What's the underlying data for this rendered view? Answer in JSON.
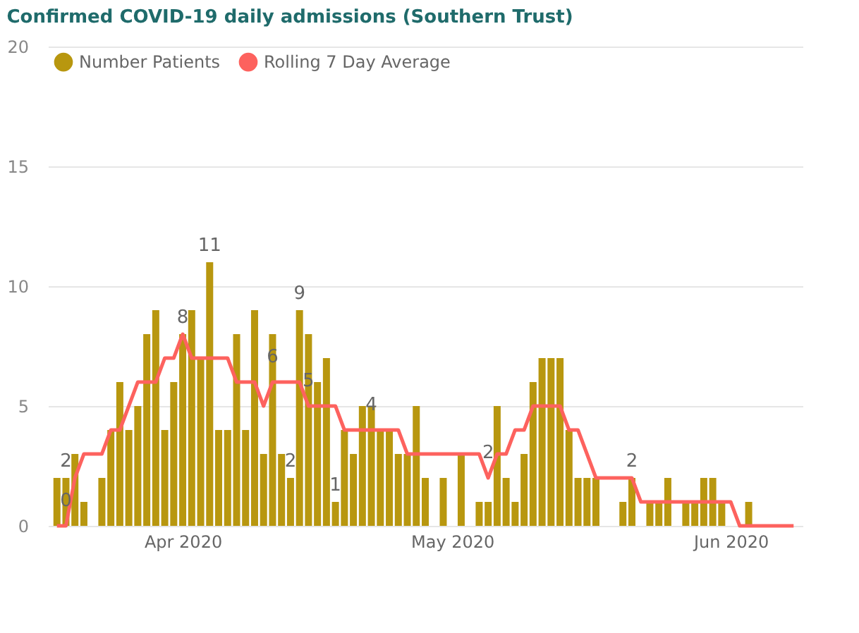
{
  "chart_data": {
    "type": "bar",
    "title": "Confirmed COVID-19 daily admissions (Southern Trust)",
    "x": [
      "2020-03-18",
      "2020-03-19",
      "2020-03-20",
      "2020-03-21",
      "2020-03-22",
      "2020-03-23",
      "2020-03-24",
      "2020-03-25",
      "2020-03-26",
      "2020-03-27",
      "2020-03-28",
      "2020-03-29",
      "2020-03-30",
      "2020-03-31",
      "2020-04-01",
      "2020-04-02",
      "2020-04-03",
      "2020-04-04",
      "2020-04-05",
      "2020-04-06",
      "2020-04-07",
      "2020-04-08",
      "2020-04-09",
      "2020-04-10",
      "2020-04-11",
      "2020-04-12",
      "2020-04-13",
      "2020-04-14",
      "2020-04-15",
      "2020-04-16",
      "2020-04-17",
      "2020-04-18",
      "2020-04-19",
      "2020-04-20",
      "2020-04-21",
      "2020-04-22",
      "2020-04-23",
      "2020-04-24",
      "2020-04-25",
      "2020-04-26",
      "2020-04-27",
      "2020-04-28",
      "2020-04-29",
      "2020-04-30",
      "2020-05-01",
      "2020-05-02",
      "2020-05-03",
      "2020-05-04",
      "2020-05-05",
      "2020-05-06",
      "2020-05-07",
      "2020-05-08",
      "2020-05-09",
      "2020-05-10",
      "2020-05-11",
      "2020-05-12",
      "2020-05-13",
      "2020-05-14",
      "2020-05-15",
      "2020-05-16",
      "2020-05-17",
      "2020-05-18",
      "2020-05-19",
      "2020-05-20",
      "2020-05-21",
      "2020-05-22",
      "2020-05-23",
      "2020-05-24",
      "2020-05-25",
      "2020-05-26",
      "2020-05-27",
      "2020-05-28",
      "2020-05-29",
      "2020-05-30",
      "2020-05-31",
      "2020-06-01",
      "2020-06-02",
      "2020-06-03",
      "2020-06-04",
      "2020-06-05",
      "2020-06-06",
      "2020-06-07",
      "2020-06-08"
    ],
    "series": [
      {
        "name": "Number Patients",
        "color": "#b8970f",
        "values": [
          2,
          2,
          3,
          1,
          null,
          2,
          4,
          6,
          4,
          5,
          8,
          9,
          4,
          6,
          8,
          9,
          7,
          11,
          4,
          4,
          8,
          4,
          9,
          3,
          8,
          3,
          2,
          9,
          8,
          6,
          7,
          1,
          4,
          3,
          5,
          5,
          4,
          4,
          3,
          3,
          5,
          2,
          null,
          2,
          null,
          3,
          null,
          1,
          1,
          5,
          2,
          1,
          3,
          6,
          7,
          7,
          7,
          4,
          2,
          2,
          2,
          null,
          null,
          1,
          2,
          null,
          1,
          1,
          2,
          null,
          1,
          1,
          2,
          2,
          1,
          null,
          null,
          1,
          null,
          null,
          null,
          null,
          null
        ],
        "value_labels": [
          null,
          "2",
          null,
          null,
          null,
          null,
          null,
          null,
          null,
          null,
          null,
          null,
          null,
          null,
          "8",
          null,
          null,
          "11",
          null,
          null,
          null,
          null,
          null,
          null,
          null,
          null,
          "2",
          "9",
          null,
          null,
          null,
          "1",
          null,
          null,
          null,
          null,
          null,
          null,
          null,
          null,
          null,
          null,
          null,
          null,
          null,
          null,
          null,
          null,
          null,
          null,
          null,
          null,
          null,
          null,
          null,
          null,
          null,
          null,
          null,
          null,
          null,
          null,
          null,
          null,
          "2",
          null,
          null,
          null,
          null,
          null,
          null,
          null,
          null,
          null,
          null,
          null,
          null,
          null,
          null,
          null,
          null,
          null,
          null
        ]
      },
      {
        "name": "Rolling 7 Day Average",
        "type": "line",
        "color": "#fd625e",
        "values": [
          0,
          0,
          2,
          3,
          3,
          3,
          4,
          4,
          5,
          6,
          6,
          6,
          7,
          7,
          8,
          7,
          7,
          7,
          7,
          7,
          6,
          6,
          6,
          5,
          6,
          6,
          6,
          6,
          5,
          5,
          5,
          5,
          4,
          4,
          4,
          4,
          4,
          4,
          4,
          3,
          3,
          3,
          3,
          3,
          3,
          3,
          3,
          3,
          2,
          3,
          3,
          4,
          4,
          5,
          5,
          5,
          5,
          4,
          4,
          3,
          2,
          2,
          2,
          2,
          2,
          1,
          1,
          1,
          1,
          1,
          1,
          1,
          1,
          1,
          1,
          1,
          0,
          0,
          0,
          0,
          0,
          0,
          0
        ],
        "value_labels": [
          null,
          "0",
          null,
          null,
          null,
          null,
          null,
          null,
          null,
          null,
          null,
          null,
          null,
          null,
          null,
          null,
          null,
          null,
          null,
          null,
          null,
          null,
          null,
          null,
          "6",
          null,
          null,
          null,
          "5",
          null,
          null,
          null,
          null,
          null,
          null,
          "4",
          null,
          null,
          null,
          null,
          null,
          null,
          null,
          null,
          null,
          null,
          null,
          null,
          "2",
          null,
          null,
          null,
          null,
          null,
          null,
          null,
          null,
          null,
          null,
          null,
          null,
          null,
          null,
          null,
          null,
          null,
          null,
          null,
          null,
          null,
          null,
          null,
          null,
          null,
          null,
          null,
          null,
          null,
          null,
          null,
          null,
          null,
          null
        ]
      }
    ],
    "xlim": [
      "2020-03-17",
      "2020-06-09"
    ],
    "xticks": [
      {
        "value": "2020-04-01",
        "label": "Apr 2020"
      },
      {
        "value": "2020-05-01",
        "label": "May 2020"
      },
      {
        "value": "2020-06-01",
        "label": "Jun 2020"
      }
    ],
    "ylim": [
      0,
      20
    ],
    "yticks": [
      0,
      5,
      10,
      15,
      20
    ],
    "grid": "y",
    "legend": "top left"
  }
}
